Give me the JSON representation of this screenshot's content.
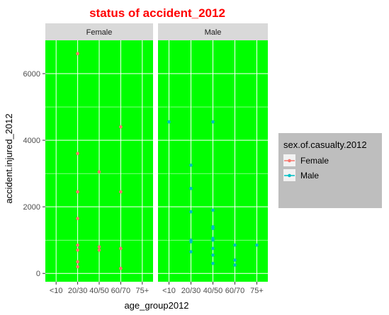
{
  "chart_data": {
    "type": "scatter",
    "title": "status of accident_2012",
    "title_color": "#ff0000",
    "xlabel": "age_group2012",
    "ylabel": "accident.injured_2012",
    "categories": [
      "<10",
      "20/30",
      "40/50",
      "60/70",
      "75+"
    ],
    "ylim": [
      -250,
      7000
    ],
    "yticks": [
      0,
      2000,
      4000,
      6000
    ],
    "grid": true,
    "panel_background": "#00ff00",
    "strip_background": "#d9d9d9",
    "facets": [
      "Female",
      "Male"
    ],
    "legend": {
      "title": "sex.of.casualty.2012",
      "placement": "right",
      "background": "#bebebe",
      "entries": [
        {
          "label": "Female",
          "color": "#f8766d"
        },
        {
          "label": "Male",
          "color": "#00bfc4"
        }
      ]
    },
    "series": [
      {
        "name": "Female",
        "color": "#f8766d",
        "facet": "Female",
        "points": [
          {
            "x": "20/30",
            "y": 6600
          },
          {
            "x": "20/30",
            "y": 3600
          },
          {
            "x": "20/30",
            "y": 2450
          },
          {
            "x": "20/30",
            "y": 1650
          },
          {
            "x": "20/30",
            "y": 850
          },
          {
            "x": "20/30",
            "y": 700
          },
          {
            "x": "20/30",
            "y": 350
          },
          {
            "x": "20/30",
            "y": 200
          },
          {
            "x": "40/50",
            "y": 3050
          },
          {
            "x": "40/50",
            "y": 800
          },
          {
            "x": "40/50",
            "y": 700
          },
          {
            "x": "60/70",
            "y": 4400
          },
          {
            "x": "60/70",
            "y": 2450
          },
          {
            "x": "60/70",
            "y": 750
          },
          {
            "x": "60/70",
            "y": 150
          }
        ]
      },
      {
        "name": "Male",
        "color": "#00bfc4",
        "facet": "Male",
        "points": [
          {
            "x": "<10",
            "y": 4550
          },
          {
            "x": "20/30",
            "y": 3250
          },
          {
            "x": "20/30",
            "y": 2550
          },
          {
            "x": "20/30",
            "y": 1850
          },
          {
            "x": "20/30",
            "y": 1000
          },
          {
            "x": "20/30",
            "y": 950
          },
          {
            "x": "20/30",
            "y": 650
          },
          {
            "x": "40/50",
            "y": 4550
          },
          {
            "x": "40/50",
            "y": 1900
          },
          {
            "x": "40/50",
            "y": 1400
          },
          {
            "x": "40/50",
            "y": 1350
          },
          {
            "x": "40/50",
            "y": 1050
          },
          {
            "x": "40/50",
            "y": 1000
          },
          {
            "x": "40/50",
            "y": 750
          },
          {
            "x": "40/50",
            "y": 550
          },
          {
            "x": "40/50",
            "y": 300
          },
          {
            "x": "60/70",
            "y": 850
          },
          {
            "x": "60/70",
            "y": 400
          },
          {
            "x": "60/70",
            "y": 250
          },
          {
            "x": "75+",
            "y": 850
          }
        ]
      }
    ]
  }
}
